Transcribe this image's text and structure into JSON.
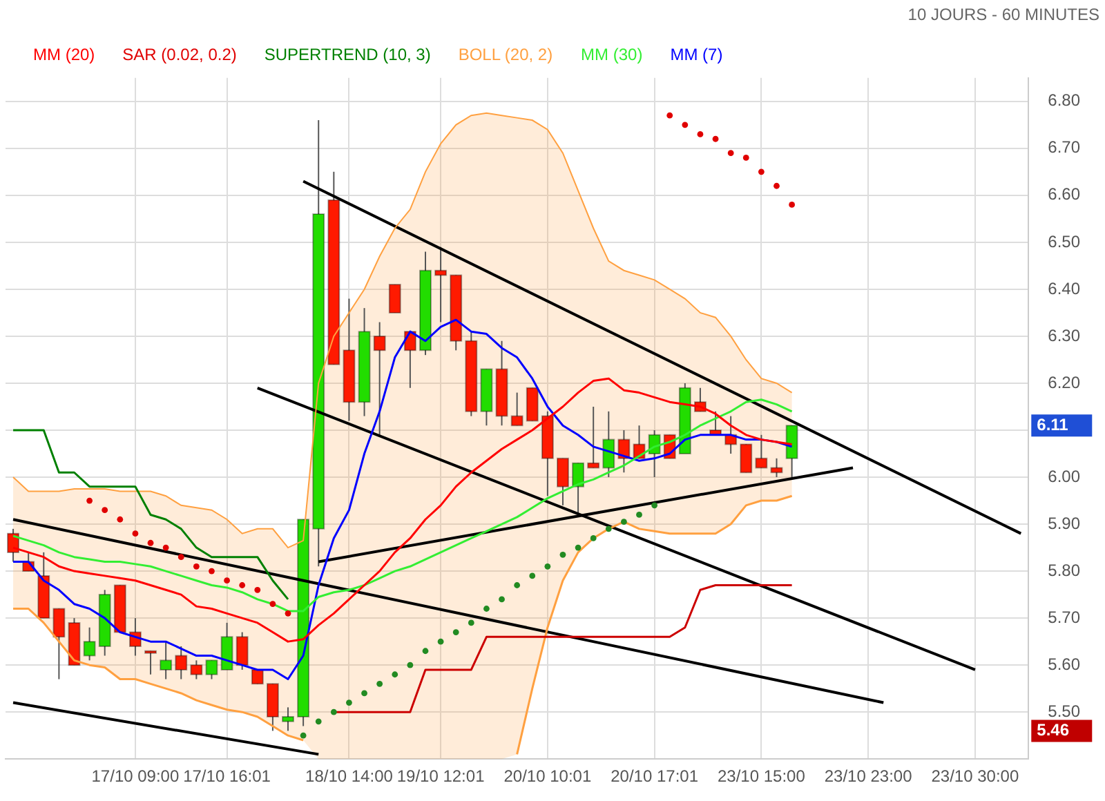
{
  "chart_data": {
    "type": "candlestick",
    "subtitle": "10 JOURS - 60 MINUTES",
    "categories": [
      null,
      null,
      null,
      null,
      null,
      null,
      null,
      null,
      "17/10 09:00",
      null,
      null,
      null,
      null,
      null,
      "17/10 16:01",
      null,
      null,
      null,
      null,
      null,
      null,
      null,
      "18/10 14:00",
      null,
      null,
      null,
      null,
      null,
      "19/10 12:01",
      null,
      null,
      null,
      null,
      null,
      null,
      "20/10 10:01",
      null,
      null,
      null,
      null,
      null,
      null,
      "20/10 17:01",
      null,
      null,
      null,
      null,
      null,
      null,
      "23/10 15:00",
      null,
      null,
      null,
      null,
      null,
      null,
      "23/10 23:00",
      null,
      null,
      null,
      null,
      null,
      null,
      "23/10 30:00",
      null,
      null,
      null
    ],
    "ohlc": [
      [
        5.88,
        5.89,
        5.82,
        5.84
      ],
      [
        5.82,
        5.84,
        5.8,
        5.8
      ],
      [
        5.79,
        5.84,
        5.7,
        5.7
      ],
      [
        5.72,
        5.72,
        5.57,
        5.66
      ],
      [
        5.69,
        5.7,
        5.6,
        5.6
      ],
      [
        5.62,
        5.68,
        5.61,
        5.65
      ],
      [
        5.64,
        5.76,
        5.62,
        5.75
      ],
      [
        5.77,
        5.77,
        5.67,
        5.67
      ],
      [
        5.67,
        5.7,
        5.62,
        5.64
      ],
      [
        5.63,
        5.63,
        5.58,
        5.63
      ],
      [
        5.59,
        5.65,
        5.57,
        5.61
      ],
      [
        5.62,
        5.64,
        5.57,
        5.59
      ],
      [
        5.6,
        5.61,
        5.57,
        5.58
      ],
      [
        5.58,
        5.61,
        5.57,
        5.61
      ],
      [
        5.59,
        5.69,
        5.59,
        5.66
      ],
      [
        5.66,
        5.67,
        5.59,
        5.6
      ],
      [
        5.59,
        5.59,
        5.56,
        5.56
      ],
      [
        5.56,
        5.56,
        5.46,
        5.49
      ],
      [
        5.48,
        5.51,
        5.46,
        5.49
      ],
      [
        5.49,
        5.91,
        5.47,
        5.91
      ],
      [
        5.89,
        6.76,
        5.81,
        6.56
      ],
      [
        6.59,
        6.65,
        6.24,
        6.24
      ],
      [
        6.27,
        6.38,
        6.12,
        6.16
      ],
      [
        6.16,
        6.36,
        6.13,
        6.31
      ],
      [
        6.3,
        6.33,
        6.09,
        6.27
      ],
      [
        6.41,
        6.41,
        6.35,
        6.35
      ],
      [
        6.31,
        6.31,
        6.19,
        6.27
      ],
      [
        6.27,
        6.48,
        6.26,
        6.44
      ],
      [
        6.44,
        6.49,
        6.33,
        6.43
      ],
      [
        6.43,
        6.43,
        6.27,
        6.29
      ],
      [
        6.29,
        6.31,
        6.13,
        6.14
      ],
      [
        6.14,
        6.23,
        6.11,
        6.23
      ],
      [
        6.23,
        6.29,
        6.11,
        6.13
      ],
      [
        6.13,
        6.18,
        6.11,
        6.11
      ],
      [
        6.19,
        6.19,
        6.12,
        6.12
      ],
      [
        6.13,
        6.14,
        5.96,
        6.04
      ],
      [
        6.04,
        6.04,
        5.94,
        5.98
      ],
      [
        5.98,
        6.03,
        5.92,
        6.03
      ],
      [
        6.03,
        6.15,
        6.02,
        6.02
      ],
      [
        6.02,
        6.14,
        6.0,
        6.08
      ],
      [
        6.08,
        6.1,
        6.01,
        6.04
      ],
      [
        6.07,
        6.11,
        6.04,
        6.04
      ],
      [
        6.05,
        6.1,
        6.0,
        6.09
      ],
      [
        6.09,
        6.09,
        6.04,
        6.04
      ],
      [
        6.05,
        6.2,
        6.05,
        6.19
      ],
      [
        6.16,
        6.19,
        6.14,
        6.14
      ],
      [
        6.1,
        6.14,
        6.09,
        6.09
      ],
      [
        6.09,
        6.13,
        6.05,
        6.07
      ],
      [
        6.07,
        6.07,
        6.01,
        6.01
      ],
      [
        6.04,
        6.09,
        6.02,
        6.02
      ],
      [
        6.02,
        6.04,
        6.0,
        6.01
      ],
      [
        6.04,
        6.11,
        6.0,
        6.11
      ],
      null,
      null,
      null,
      null,
      null,
      null,
      null,
      null,
      null,
      null,
      null,
      null,
      null,
      null,
      null
    ],
    "colors": [
      "#ff1a00",
      "#ff1a00",
      "#ff1a00",
      "#ff1a00",
      "#ff1a00",
      "#22dd00",
      "#22dd00",
      "#ff1a00",
      "#ff1a00",
      "#ff1a00",
      "#22dd00",
      "#ff1a00",
      "#ff1a00",
      "#22dd00",
      "#22dd00",
      "#ff1a00",
      "#ff1a00",
      "#ff1a00",
      "#22dd00",
      "#22dd00",
      "#22dd00",
      "#ff1a00",
      "#ff1a00",
      "#22dd00",
      "#ff1a00",
      "#ff1a00",
      "#ff1a00",
      "#22dd00",
      "#ff1a00",
      "#ff1a00",
      "#ff1a00",
      "#22dd00",
      "#ff1a00",
      "#ff1a00",
      "#ff1a00",
      "#ff1a00",
      "#ff1a00",
      "#22dd00",
      "#ff1a00",
      "#22dd00",
      "#ff1a00",
      "#ff1a00",
      "#22dd00",
      "#ff1a00",
      "#22dd00",
      "#ff1a00",
      "#ff1a00",
      "#ff1a00",
      "#ff1a00",
      "#ff1a00",
      "#ff1a00",
      "#22dd00",
      null,
      null,
      null,
      null,
      null,
      null,
      null,
      null,
      null,
      null,
      null,
      null,
      null,
      null,
      null
    ],
    "series": [
      {
        "name": "MM (20)",
        "type": "line",
        "color": "#ff0000",
        "values": [
          5.85,
          5.84,
          5.83,
          5.81,
          5.8,
          5.795,
          5.79,
          5.785,
          5.78,
          5.77,
          5.76,
          5.75,
          5.725,
          5.72,
          5.71,
          5.7,
          5.69,
          5.67,
          5.65,
          5.655,
          5.685,
          5.71,
          5.74,
          5.77,
          5.8,
          5.84,
          5.87,
          5.91,
          5.94,
          5.98,
          6.01,
          6.035,
          6.06,
          6.08,
          6.1,
          6.125,
          6.15,
          6.18,
          6.205,
          6.21,
          6.185,
          6.18,
          6.17,
          6.16,
          6.155,
          6.15,
          6.135,
          6.11,
          6.09,
          6.08,
          6.075,
          6.07,
          null,
          null,
          null,
          null,
          null,
          null,
          null,
          null,
          null,
          null,
          null,
          null,
          null,
          null,
          null
        ]
      },
      {
        "name": "SAR (0.02, 0.2)",
        "type": "scatter",
        "color": "#e00000",
        "marker": "circle",
        "values": [
          null,
          null,
          null,
          null,
          null,
          5.95,
          5.93,
          5.91,
          5.88,
          5.86,
          5.85,
          5.83,
          5.81,
          5.8,
          5.78,
          5.77,
          5.76,
          5.73,
          5.71,
          5.45,
          5.48,
          5.5,
          5.52,
          5.54,
          5.56,
          5.58,
          5.6,
          5.63,
          5.65,
          5.67,
          5.69,
          5.72,
          5.74,
          5.77,
          5.79,
          5.81,
          5.835,
          5.85,
          5.87,
          5.89,
          5.905,
          5.92,
          5.94,
          6.77,
          6.75,
          6.73,
          6.72,
          6.69,
          6.68,
          6.65,
          6.62,
          6.58,
          null,
          null,
          null,
          null,
          null,
          null,
          null,
          null,
          null,
          null,
          null,
          null,
          null,
          null,
          null
        ],
        "colors": [
          null,
          null,
          null,
          null,
          null,
          "#e00000",
          "#e00000",
          "#e00000",
          "#e00000",
          "#e00000",
          "#e00000",
          "#e00000",
          "#e00000",
          "#e00000",
          "#e00000",
          "#e00000",
          "#e00000",
          "#e00000",
          "#e00000",
          "#228b22",
          "#228b22",
          "#228b22",
          "#228b22",
          "#228b22",
          "#228b22",
          "#228b22",
          "#228b22",
          "#228b22",
          "#228b22",
          "#228b22",
          "#228b22",
          "#228b22",
          "#228b22",
          "#228b22",
          "#228b22",
          "#228b22",
          "#228b22",
          "#228b22",
          "#228b22",
          "#228b22",
          "#228b22",
          "#228b22",
          "#228b22",
          "#e00000",
          "#e00000",
          "#e00000",
          "#e00000",
          "#e00000",
          "#e00000",
          "#e00000",
          "#e00000",
          "#e00000",
          null,
          null,
          null,
          null,
          null,
          null,
          null,
          null,
          null,
          null,
          null,
          null,
          null,
          null,
          null
        ]
      },
      {
        "name": "SUPERTREND (10, 3)",
        "type": "line",
        "color": "#008000",
        "values": [
          6.1,
          6.1,
          6.1,
          6.01,
          6.01,
          5.98,
          5.98,
          5.98,
          5.98,
          5.92,
          5.91,
          5.89,
          5.85,
          5.83,
          5.83,
          5.83,
          5.83,
          5.78,
          5.74,
          null,
          null,
          null,
          null,
          null,
          null,
          null,
          null,
          null,
          null,
          null,
          null,
          null,
          null,
          null,
          null,
          null,
          null,
          null,
          null,
          null,
          null,
          null,
          null,
          null,
          null,
          null,
          null,
          null,
          null,
          null,
          null,
          null,
          null,
          null,
          null,
          null,
          null,
          null,
          null,
          null,
          null,
          null,
          null,
          null,
          null,
          null,
          null
        ]
      },
      {
        "type": "line",
        "color": "#cc0000",
        "values": [
          null,
          null,
          null,
          null,
          null,
          null,
          null,
          null,
          null,
          null,
          null,
          null,
          null,
          null,
          null,
          null,
          null,
          null,
          null,
          null,
          null,
          5.5,
          5.5,
          5.5,
          5.5,
          5.5,
          5.5,
          5.59,
          5.59,
          5.59,
          5.59,
          5.66,
          5.66,
          5.66,
          5.66,
          5.66,
          5.66,
          5.66,
          5.66,
          5.66,
          5.66,
          5.66,
          5.66,
          5.66,
          5.68,
          5.76,
          5.77,
          5.77,
          5.77,
          5.77,
          5.77,
          5.77,
          null,
          null,
          null,
          null,
          null,
          null,
          null,
          null,
          null,
          null,
          null,
          null,
          null,
          null,
          null
        ]
      },
      {
        "name": "BOLL (20, 2)",
        "type": "area",
        "color": "#ffa040",
        "values": [
          6.0,
          5.97,
          5.97,
          5.97,
          5.975,
          5.975,
          5.975,
          5.97,
          5.97,
          5.97,
          5.96,
          5.94,
          5.935,
          5.93,
          5.91,
          5.88,
          5.89,
          5.89,
          5.85,
          5.865,
          6.2,
          6.3,
          6.35,
          6.4,
          6.47,
          6.53,
          6.57,
          6.65,
          6.71,
          6.75,
          6.77,
          6.775,
          6.77,
          6.765,
          6.76,
          6.74,
          6.69,
          6.61,
          6.53,
          6.46,
          6.44,
          6.43,
          6.42,
          6.4,
          6.38,
          6.35,
          6.34,
          6.3,
          6.25,
          6.21,
          6.2,
          6.18,
          null,
          null,
          null,
          null,
          null,
          null,
          null,
          null,
          null,
          null,
          null,
          null,
          null,
          null,
          null
        ]
      },
      {
        "type": "line",
        "color": "#ffa040",
        "values": [
          5.72,
          5.72,
          5.69,
          5.65,
          5.61,
          5.6,
          5.595,
          5.57,
          5.57,
          5.56,
          5.55,
          5.54,
          5.525,
          5.515,
          5.505,
          5.5,
          5.49,
          5.47,
          5.45,
          5.44,
          null,
          null,
          null,
          null,
          null,
          null,
          null,
          null,
          null,
          null,
          null,
          null,
          null,
          5.41,
          5.55,
          5.68,
          5.78,
          5.84,
          5.87,
          5.89,
          5.905,
          5.89,
          5.885,
          5.88,
          5.88,
          5.88,
          5.88,
          5.9,
          5.94,
          5.95,
          5.95,
          5.96,
          null,
          null,
          null,
          null,
          null,
          null,
          null,
          null,
          null,
          null,
          null,
          null,
          null,
          null,
          null
        ]
      },
      {
        "name": "MM (30)",
        "type": "line",
        "color": "#33ee33",
        "values": [
          5.875,
          5.865,
          5.855,
          5.84,
          5.83,
          5.825,
          5.82,
          5.82,
          5.815,
          5.81,
          5.8,
          5.79,
          5.78,
          5.77,
          5.765,
          5.755,
          5.74,
          5.73,
          5.715,
          5.715,
          5.745,
          5.755,
          5.76,
          5.77,
          5.785,
          5.8,
          5.81,
          5.825,
          5.84,
          5.855,
          5.87,
          5.885,
          5.9,
          5.915,
          5.935,
          5.955,
          5.97,
          5.985,
          5.995,
          6.01,
          6.025,
          6.045,
          6.065,
          6.075,
          6.09,
          6.11,
          6.125,
          6.14,
          6.16,
          6.165,
          6.155,
          6.14,
          null,
          null,
          null,
          null,
          null,
          null,
          null,
          null,
          null,
          null,
          null,
          null,
          null,
          null,
          null
        ]
      },
      {
        "name": "MM (7)",
        "type": "line",
        "color": "#0000ff",
        "values": [
          5.82,
          5.82,
          5.78,
          5.76,
          5.73,
          5.72,
          5.7,
          5.67,
          5.66,
          5.65,
          5.65,
          5.635,
          5.62,
          5.62,
          5.61,
          5.6,
          5.59,
          5.59,
          5.57,
          5.62,
          5.77,
          5.87,
          5.93,
          6.05,
          6.14,
          6.255,
          6.31,
          6.29,
          6.32,
          6.335,
          6.31,
          6.305,
          6.275,
          6.255,
          6.21,
          6.15,
          6.11,
          6.09,
          6.065,
          6.055,
          6.045,
          6.035,
          6.04,
          6.05,
          6.08,
          6.09,
          6.09,
          6.09,
          6.08,
          6.08,
          6.075,
          6.065,
          null,
          null,
          null,
          null,
          null,
          null,
          null,
          null,
          null,
          null,
          null,
          null,
          null,
          null,
          null
        ]
      },
      {
        "type": "line",
        "color": "#000000",
        "values": [
          null,
          null,
          null,
          null,
          null,
          null,
          null,
          null,
          null,
          null,
          null,
          null,
          null,
          null,
          null,
          null,
          null,
          null,
          null,
          6.63,
          null,
          null,
          null,
          null,
          null,
          null,
          null,
          null,
          null,
          null,
          null,
          null,
          null,
          null,
          null,
          null,
          null,
          null,
          null,
          null,
          null,
          null,
          null,
          null,
          null,
          null,
          null,
          null,
          null,
          null,
          null,
          null,
          null,
          null,
          null,
          null,
          null,
          null,
          null,
          null,
          null,
          null,
          null,
          null,
          null,
          null,
          5.88
        ]
      },
      {
        "type": "line",
        "color": "#000000",
        "values": [
          null,
          null,
          null,
          null,
          null,
          null,
          null,
          null,
          null,
          null,
          null,
          null,
          null,
          null,
          null,
          null,
          6.19,
          null,
          null,
          null,
          null,
          null,
          null,
          null,
          null,
          null,
          null,
          null,
          null,
          null,
          null,
          null,
          null,
          null,
          null,
          null,
          null,
          null,
          null,
          null,
          null,
          null,
          null,
          null,
          null,
          null,
          null,
          null,
          null,
          null,
          null,
          null,
          null,
          null,
          null,
          null,
          null,
          null,
          null,
          null,
          null,
          null,
          null,
          5.59,
          null,
          null,
          null
        ]
      },
      {
        "type": "line",
        "color": "#000000",
        "values": [
          5.91,
          null,
          null,
          null,
          null,
          null,
          null,
          null,
          null,
          null,
          null,
          null,
          null,
          null,
          null,
          null,
          null,
          null,
          null,
          null,
          null,
          null,
          null,
          null,
          null,
          null,
          null,
          null,
          null,
          null,
          null,
          null,
          null,
          null,
          null,
          null,
          null,
          null,
          null,
          null,
          null,
          null,
          null,
          null,
          null,
          null,
          null,
          null,
          null,
          null,
          null,
          null,
          null,
          null,
          null,
          null,
          null,
          5.52,
          null,
          null,
          null,
          null,
          null,
          null,
          null,
          null,
          null
        ]
      },
      {
        "type": "line",
        "color": "#000000",
        "values": [
          5.52,
          null,
          null,
          null,
          null,
          null,
          null,
          null,
          null,
          null,
          null,
          null,
          null,
          null,
          null,
          null,
          null,
          null,
          null,
          null,
          5.41,
          null,
          null,
          null,
          null,
          null,
          null,
          null,
          null,
          null,
          null,
          null,
          null,
          null,
          null,
          null,
          null,
          null,
          null,
          null,
          null,
          null,
          null,
          null,
          null,
          null,
          null,
          null,
          null,
          null,
          null,
          null,
          null,
          null,
          null,
          null,
          null,
          null,
          null,
          null,
          null,
          null,
          null,
          null,
          null,
          null,
          null
        ]
      },
      {
        "type": "line",
        "color": "#000000",
        "values": [
          null,
          null,
          null,
          null,
          null,
          null,
          null,
          null,
          null,
          null,
          null,
          null,
          null,
          null,
          null,
          null,
          null,
          null,
          null,
          null,
          5.82,
          null,
          null,
          null,
          null,
          null,
          null,
          null,
          null,
          null,
          null,
          null,
          null,
          null,
          null,
          null,
          null,
          null,
          null,
          null,
          null,
          null,
          null,
          null,
          null,
          null,
          null,
          null,
          null,
          null,
          null,
          null,
          null,
          null,
          null,
          6.02,
          null,
          null,
          null,
          null,
          null,
          null,
          null,
          null,
          null,
          null,
          null
        ]
      }
    ],
    "ylim": [
      5.4,
      6.85
    ],
    "yticks": [
      {
        "value": 5.5,
        "label": "5.50"
      },
      {
        "value": 5.6,
        "label": "5.60"
      },
      {
        "value": 5.7,
        "label": "5.70"
      },
      {
        "value": 5.8,
        "label": "5.80"
      },
      {
        "value": 5.9,
        "label": "5.90"
      },
      {
        "value": 6.0,
        "label": "6.00"
      },
      {
        "value": 6.1,
        "label": null
      },
      {
        "value": 6.2,
        "label": "6.20"
      },
      {
        "value": 6.3,
        "label": "6.30"
      },
      {
        "value": 6.4,
        "label": "6.40"
      },
      {
        "value": 6.5,
        "label": "6.50"
      },
      {
        "value": 6.6,
        "label": "6.60"
      },
      {
        "value": 6.7,
        "label": "6.70"
      },
      {
        "value": 6.8,
        "label": "6.80"
      }
    ],
    "grid": true,
    "legend": "top left",
    "annotations": [
      "6.11",
      "5.46"
    ]
  }
}
